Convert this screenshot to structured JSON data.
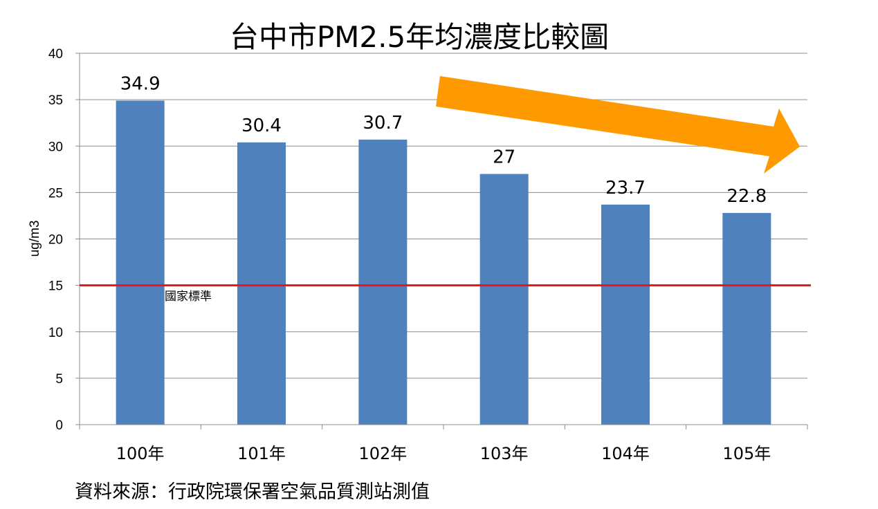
{
  "chart_data": {
    "type": "bar",
    "title": "台中市PM2.5年均濃度比較圖",
    "ylabel": "ug/m3",
    "xlabel": "",
    "categories": [
      "100年",
      "101年",
      "102年",
      "103年",
      "104年",
      "105年"
    ],
    "values": [
      34.9,
      30.4,
      30.7,
      27,
      23.7,
      22.8
    ],
    "data_labels": [
      "34.9",
      "30.4",
      "30.7",
      "27",
      "23.7",
      "22.8"
    ],
    "ylim": [
      0,
      40
    ],
    "yticks": [
      "0",
      "5",
      "10",
      "15",
      "20",
      "25",
      "30",
      "35",
      "40"
    ],
    "grid": true,
    "legend": "none",
    "bar_color": "#4f81bd",
    "reference_line": {
      "value": 15,
      "label": "國家標準",
      "color": "#e8131b"
    },
    "trend_arrow": {
      "direction": "down",
      "color": "#ff9900"
    },
    "source": "資料來源：行政院環保署空氣品質測站測值"
  }
}
